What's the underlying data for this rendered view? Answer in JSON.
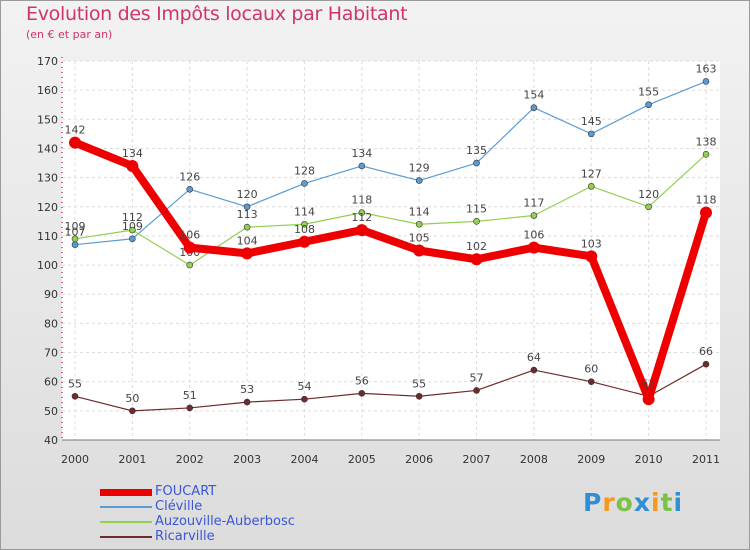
{
  "title": "Evolution des Impôts locaux par Habitant",
  "subtitle": "(en € et par an)",
  "brand": "Proxiti",
  "chart_data": {
    "type": "line",
    "title": "Evolution des Impôts locaux par Habitant",
    "subtitle": "(en € et par an)",
    "xlabel": "",
    "ylabel": "",
    "x": [
      "2000",
      "2001",
      "2002",
      "2003",
      "2004",
      "2005",
      "2006",
      "2007",
      "2008",
      "2009",
      "2010",
      "2011"
    ],
    "ylim": [
      40,
      170
    ],
    "yticks": [
      40,
      50,
      60,
      70,
      80,
      90,
      100,
      110,
      120,
      130,
      140,
      150,
      160,
      170
    ],
    "grid": true,
    "legend_position": "bottom-left",
    "series": [
      {
        "name": "FOUCART",
        "color": "#ee0000",
        "values": [
          142,
          134,
          106,
          104,
          108,
          112,
          105,
          102,
          106,
          103,
          54,
          118
        ]
      },
      {
        "name": "Cléville",
        "color": "#5a9bd5",
        "values": [
          107,
          109,
          126,
          120,
          128,
          134,
          129,
          135,
          154,
          145,
          155,
          163
        ]
      },
      {
        "name": "Auzouville-Auberbosc",
        "color": "#92d050",
        "values": [
          109,
          112,
          100,
          113,
          114,
          118,
          114,
          115,
          117,
          127,
          120,
          138
        ]
      },
      {
        "name": "Ricarville",
        "color": "#6e2b2b",
        "values": [
          55,
          50,
          51,
          53,
          54,
          56,
          55,
          57,
          64,
          60,
          55,
          66
        ]
      }
    ]
  }
}
